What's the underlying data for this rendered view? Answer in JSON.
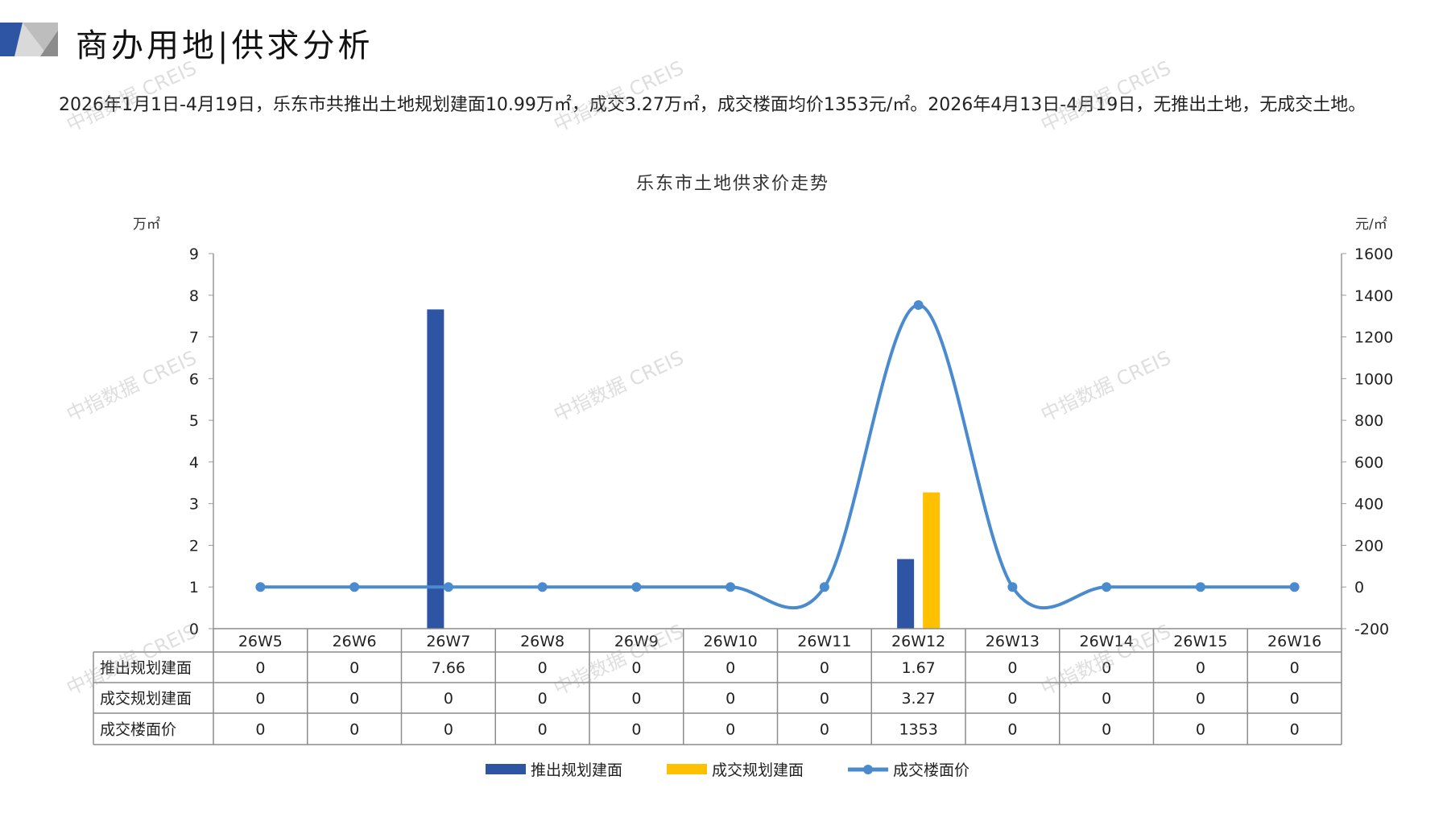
{
  "header": {
    "title": "商办用地|供求分析"
  },
  "summary": "2026年1月1日-4月19日，乐东市共推出土地规划建面10.99万㎡，成交3.27万㎡，成交楼面均价1353元/㎡。2026年4月13日-4月19日，无推出土地，无成交土地。",
  "watermark": "中指数据 CREIS",
  "chart_data": {
    "type": "bar+line",
    "title": "乐东市土地供求价走势",
    "ylabel_left": "万㎡",
    "ylabel_right": "元/㎡",
    "ylim_left": [
      0,
      9
    ],
    "yticks_left": [
      0,
      1,
      2,
      3,
      4,
      5,
      6,
      7,
      8,
      9
    ],
    "ylim_right": [
      -200,
      1600
    ],
    "yticks_right": [
      -200,
      0,
      200,
      400,
      600,
      800,
      1000,
      1200,
      1400,
      1600
    ],
    "categories": [
      "26W5",
      "26W6",
      "26W7",
      "26W8",
      "26W9",
      "26W10",
      "26W11",
      "26W12",
      "26W13",
      "26W14",
      "26W15",
      "26W16"
    ],
    "series": [
      {
        "name": "推出规划建面",
        "type": "bar",
        "axis": "left",
        "color": "#2E54A4",
        "values": [
          0,
          0,
          7.66,
          0,
          0,
          0,
          0,
          1.67,
          0,
          0,
          0,
          0
        ],
        "labels": [
          "0",
          "0",
          "7.66",
          "0",
          "0",
          "0",
          "0",
          "1.67",
          "0",
          "0",
          "0",
          "0"
        ]
      },
      {
        "name": "成交规划建面",
        "type": "bar",
        "axis": "left",
        "color": "#FFC000",
        "values": [
          0,
          0,
          0,
          0,
          0,
          0,
          0,
          3.27,
          0,
          0,
          0,
          0
        ],
        "labels": [
          "0",
          "0",
          "0",
          "0",
          "0",
          "0",
          "0",
          "3.27",
          "0",
          "0",
          "0",
          "0"
        ]
      },
      {
        "name": "成交楼面价",
        "type": "line",
        "axis": "right",
        "color": "#4A8BD0",
        "smooth": true,
        "values": [
          0,
          0,
          0,
          0,
          0,
          0,
          0,
          1353,
          0,
          0,
          0,
          0
        ],
        "labels": [
          "0",
          "0",
          "0",
          "0",
          "0",
          "0",
          "0",
          "1353",
          "0",
          "0",
          "0",
          "0"
        ]
      }
    ],
    "data_table": true,
    "legend": "bottom"
  }
}
